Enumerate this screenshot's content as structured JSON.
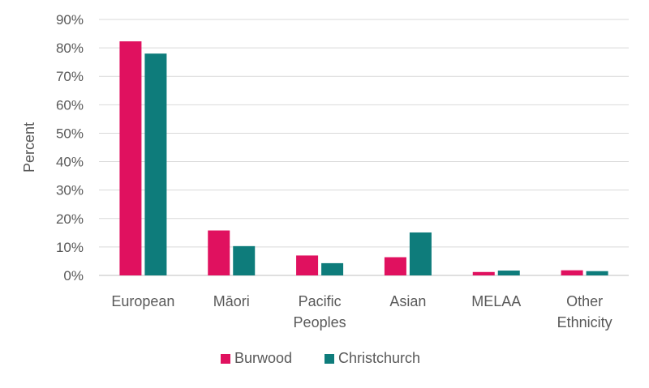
{
  "chart_data": {
    "type": "bar",
    "title": "",
    "xlabel": "",
    "ylabel": "Percent",
    "ylim": [
      0,
      90
    ],
    "yticks": [
      0,
      10,
      20,
      30,
      40,
      50,
      60,
      70,
      80,
      90
    ],
    "ytick_labels": [
      "0%",
      "10%",
      "20%",
      "30%",
      "40%",
      "50%",
      "60%",
      "70%",
      "80%",
      "90%"
    ],
    "categories": [
      [
        "European"
      ],
      [
        "Māori"
      ],
      [
        "Pacific",
        "Peoples"
      ],
      [
        "Asian"
      ],
      [
        "MELAA"
      ],
      [
        "Other",
        "Ethnicity"
      ]
    ],
    "series": [
      {
        "name": "Burwood",
        "color": "#e0115f",
        "values": [
          82.3,
          15.8,
          7.0,
          6.4,
          1.2,
          1.8
        ]
      },
      {
        "name": "Christchurch",
        "color": "#0e7c7b",
        "values": [
          78.0,
          10.3,
          4.3,
          15.1,
          1.7,
          1.5
        ]
      }
    ],
    "grid": true,
    "legend_position": "bottom"
  }
}
